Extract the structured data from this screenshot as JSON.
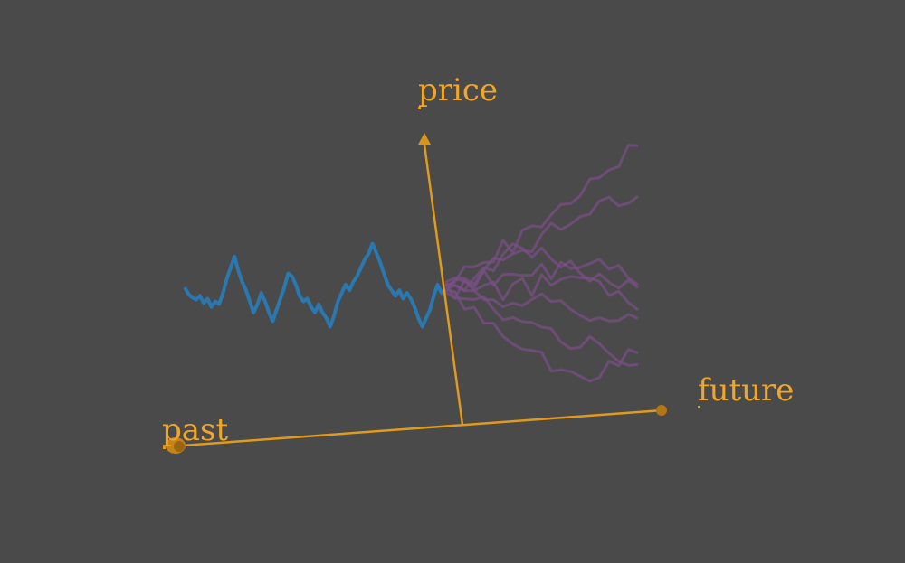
{
  "labels": {
    "price": "price",
    "past": "past",
    "future": "future"
  },
  "colors": {
    "background": "#4a4a4a",
    "axis": "#e09a1c",
    "label": "#f0a628",
    "history": "#2a78b0",
    "forecast": "#7a4f86"
  },
  "history_series": [
    0.0,
    -0.12,
    -0.18,
    -0.22,
    -0.15,
    -0.28,
    -0.2,
    -0.35,
    -0.25,
    -0.3,
    -0.1,
    0.15,
    0.35,
    0.55,
    0.3,
    0.1,
    -0.05,
    -0.25,
    -0.45,
    -0.3,
    -0.1,
    -0.25,
    -0.45,
    -0.6,
    -0.4,
    -0.2,
    0.0,
    0.25,
    0.2,
    0.05,
    -0.15,
    -0.25,
    -0.2,
    -0.35,
    -0.45,
    -0.3,
    -0.45,
    -0.55,
    -0.7,
    -0.5,
    -0.25,
    -0.1,
    0.05,
    -0.05,
    0.1,
    0.2,
    0.35,
    0.5,
    0.6,
    0.78,
    0.62,
    0.45,
    0.25,
    0.05,
    -0.05,
    -0.15,
    -0.05,
    -0.2,
    -0.1,
    -0.2,
    -0.35,
    -0.55,
    -0.7,
    -0.55,
    -0.4,
    -0.15,
    0.05,
    -0.1,
    -0.05
  ],
  "forecast_paths": [
    [
      0.0,
      0.15,
      0.3,
      0.45,
      0.35,
      0.55,
      0.75,
      0.7,
      0.95,
      1.15,
      1.05,
      1.3,
      1.5,
      1.45,
      1.7,
      1.85,
      2.05,
      2.0,
      2.25,
      2.45,
      2.6
    ],
    [
      0.0,
      0.1,
      0.2,
      0.15,
      0.35,
      0.45,
      0.4,
      0.6,
      0.75,
      0.7,
      0.9,
      1.05,
      1.0,
      1.2,
      1.35,
      1.3,
      1.45,
      1.55,
      1.5,
      1.6,
      1.65
    ],
    [
      0.0,
      0.12,
      0.05,
      0.25,
      0.4,
      0.3,
      0.55,
      0.7,
      0.6,
      0.45,
      0.65,
      0.5,
      0.4,
      0.55,
      0.35,
      0.2,
      0.3,
      0.1,
      -0.05,
      0.05,
      -0.1
    ],
    [
      0.0,
      0.05,
      0.15,
      0.05,
      0.2,
      0.1,
      0.25,
      0.15,
      0.3,
      0.2,
      0.35,
      0.25,
      0.4,
      0.3,
      0.45,
      0.35,
      0.5,
      0.4,
      0.3,
      0.2,
      0.1
    ],
    [
      0.0,
      -0.1,
      0.05,
      -0.05,
      0.1,
      0.0,
      -0.15,
      0.05,
      0.1,
      -0.05,
      0.15,
      0.05,
      0.2,
      0.1,
      0.25,
      0.15,
      0.05,
      -0.05,
      -0.15,
      -0.25,
      -0.35
    ],
    [
      0.0,
      -0.05,
      -0.15,
      -0.1,
      -0.2,
      -0.15,
      -0.25,
      -0.2,
      -0.3,
      -0.25,
      -0.2,
      -0.35,
      -0.3,
      -0.4,
      -0.45,
      -0.5,
      -0.45,
      -0.55,
      -0.6,
      -0.55,
      -0.65
    ],
    [
      0.0,
      -0.1,
      -0.2,
      -0.3,
      -0.25,
      -0.4,
      -0.5,
      -0.45,
      -0.6,
      -0.7,
      -0.8,
      -0.75,
      -0.9,
      -1.0,
      -1.05,
      -0.95,
      -1.1,
      -1.2,
      -1.25,
      -1.3,
      -1.35
    ],
    [
      0.0,
      -0.15,
      -0.3,
      -0.45,
      -0.55,
      -0.7,
      -0.85,
      -1.0,
      -1.15,
      -1.05,
      -1.25,
      -1.4,
      -1.55,
      -1.45,
      -1.6,
      -1.7,
      -1.55,
      -1.4,
      -1.3,
      -1.2,
      -1.1
    ]
  ]
}
